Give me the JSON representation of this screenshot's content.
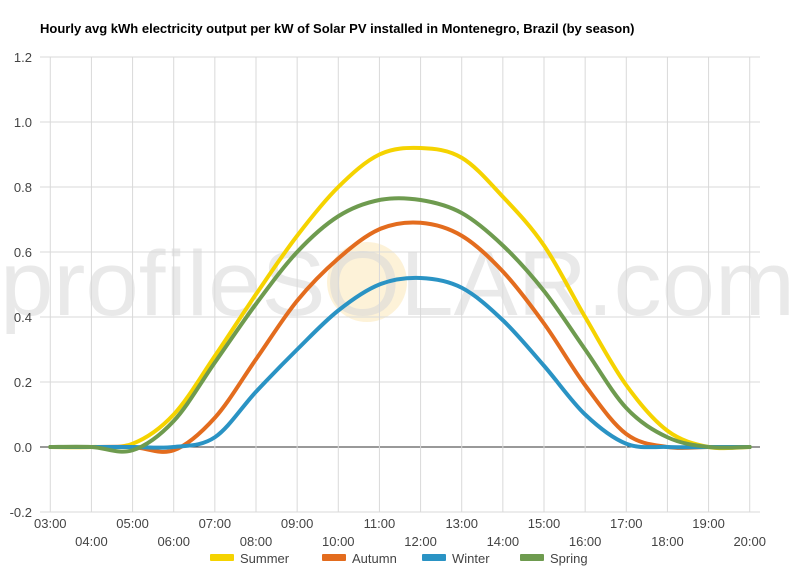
{
  "chart_data": {
    "type": "line",
    "title": "Hourly avg kWh electricity output per kW of Solar PV installed in Montenegro, Brazil (by season)",
    "xlabel": "",
    "ylabel": "",
    "ylim": [
      -0.2,
      1.2
    ],
    "yticks": [
      -0.2,
      0.0,
      0.2,
      0.4,
      0.6,
      0.8,
      1.0,
      1.2
    ],
    "ytick_labels": [
      "-0.2",
      "0.0",
      "0.2",
      "0.4",
      "0.6",
      "0.8",
      "1.0",
      "1.2"
    ],
    "x_hours": [
      3,
      4,
      5,
      6,
      7,
      8,
      9,
      10,
      11,
      12,
      13,
      14,
      15,
      16,
      17,
      18,
      19,
      20
    ],
    "x_labels": [
      "03:00",
      "04:00",
      "05:00",
      "06:00",
      "07:00",
      "08:00",
      "09:00",
      "10:00",
      "11:00",
      "12:00",
      "13:00",
      "14:00",
      "15:00",
      "16:00",
      "17:00",
      "18:00",
      "19:00",
      "20:00"
    ],
    "grid": true,
    "legend_position": "bottom",
    "series": [
      {
        "name": "Summer",
        "color": "#f5d300",
        "values": [
          0,
          0,
          0.01,
          0.1,
          0.28,
          0.47,
          0.65,
          0.8,
          0.9,
          0.92,
          0.89,
          0.77,
          0.62,
          0.4,
          0.19,
          0.05,
          0.0,
          0.0
        ]
      },
      {
        "name": "Autumn",
        "color": "#e36c1e",
        "values": [
          0,
          0,
          0.0,
          -0.01,
          0.09,
          0.27,
          0.45,
          0.58,
          0.67,
          0.69,
          0.65,
          0.54,
          0.38,
          0.19,
          0.04,
          0.0,
          0.0,
          0.0
        ]
      },
      {
        "name": "Winter",
        "color": "#2a93c4",
        "values": [
          0,
          0,
          0.0,
          0.0,
          0.03,
          0.17,
          0.3,
          0.42,
          0.5,
          0.52,
          0.49,
          0.39,
          0.25,
          0.1,
          0.01,
          0.0,
          0.0,
          0.0
        ]
      },
      {
        "name": "Spring",
        "color": "#6e9b4f",
        "values": [
          0,
          0,
          -0.01,
          0.08,
          0.26,
          0.44,
          0.6,
          0.71,
          0.76,
          0.76,
          0.72,
          0.62,
          0.48,
          0.3,
          0.12,
          0.03,
          0.0,
          0.0
        ]
      }
    ]
  },
  "watermark": {
    "text": "profileSOLAR.com"
  }
}
